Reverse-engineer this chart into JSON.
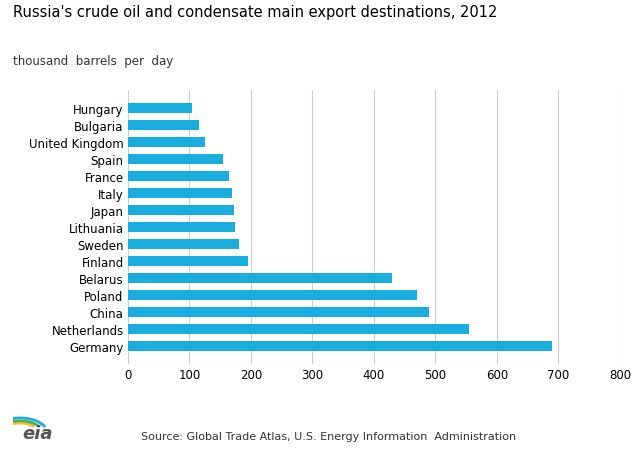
{
  "title": "Russia's crude oil and condensate main export destinations, 2012",
  "subtitle": "thousand  barrels  per  day",
  "countries": [
    "Germany",
    "Netherlands",
    "China",
    "Poland",
    "Belarus",
    "Finland",
    "Sweden",
    "Lithuania",
    "Japan",
    "Italy",
    "France",
    "Spain",
    "United Kingdom",
    "Bulgaria",
    "Hungary"
  ],
  "values": [
    690,
    555,
    490,
    470,
    430,
    195,
    180,
    175,
    172,
    170,
    165,
    155,
    125,
    115,
    105
  ],
  "bar_color": "#1aaee0",
  "xlim": [
    0,
    800
  ],
  "xticks": [
    0,
    100,
    200,
    300,
    400,
    500,
    600,
    700,
    800
  ],
  "source_text": "Source: Global Trade Atlas, U.S. Energy Information  Administration",
  "background_color": "#ffffff",
  "grid_color": "#cccccc"
}
